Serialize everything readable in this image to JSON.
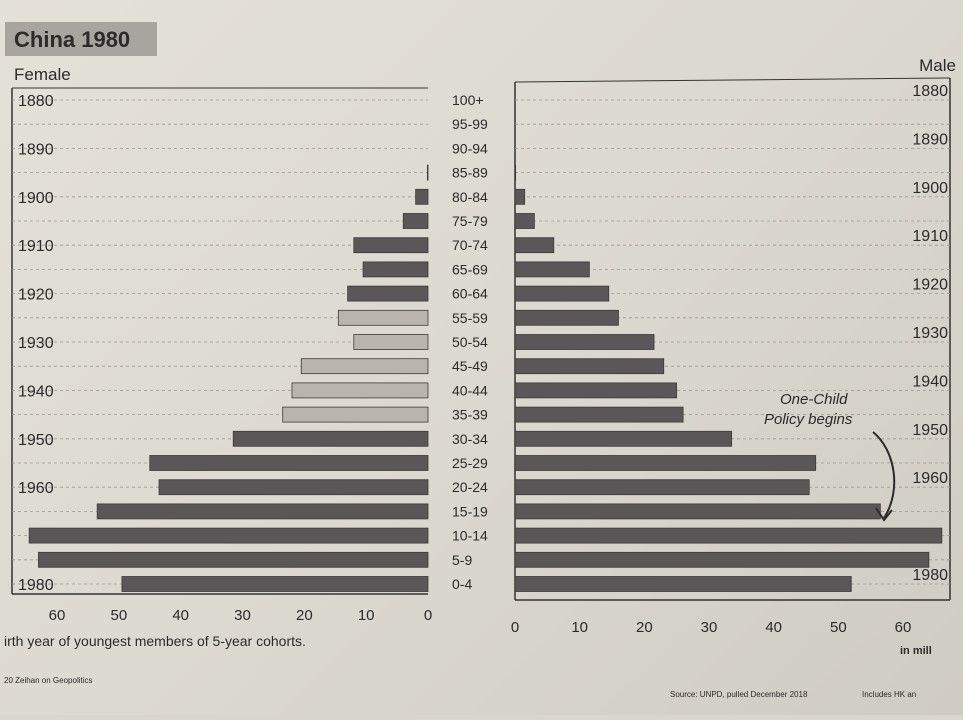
{
  "title": "China 1980",
  "female_label": "Female",
  "male_label": "Male",
  "footer": {
    "left_note": "irth year of youngest members of 5-year cohorts.",
    "credit": "20 Zeihan on Geopolitics",
    "source": "Source: UNPD, pulled December 2018",
    "includes": "Includes HK an",
    "units": "in mill"
  },
  "annotation": {
    "line1": "One-Child",
    "line2": "Policy begins"
  },
  "colors": {
    "bar": "#5b5658",
    "bar_light": "#b9b5ad",
    "title_bg": "#a8a59e",
    "grid": "#9c9890"
  },
  "chart_data": {
    "type": "bar",
    "orientation": "horizontal-population-pyramid",
    "categories": [
      "100+",
      "95-99",
      "90-94",
      "85-89",
      "80-84",
      "75-79",
      "70-74",
      "65-69",
      "60-64",
      "55-59",
      "50-54",
      "45-49",
      "40-44",
      "35-39",
      "30-34",
      "25-29",
      "20-24",
      "15-19",
      "10-14",
      "5-9",
      "0-4"
    ],
    "series": [
      {
        "name": "Female",
        "values": [
          0,
          0,
          0,
          0.1,
          2,
          4,
          12,
          10.5,
          13,
          14.5,
          12,
          20.5,
          22,
          23.5,
          31.5,
          45,
          43.5,
          53.5,
          64.5,
          63,
          49.5
        ]
      },
      {
        "name": "Male",
        "values": [
          0,
          0,
          0,
          0.1,
          1.5,
          3,
          6,
          11.5,
          14.5,
          16,
          21.5,
          23,
          25,
          26,
          33.5,
          46.5,
          45.5,
          56.5,
          66,
          64,
          52
        ]
      }
    ],
    "female_xticks": [
      "60",
      "50",
      "40",
      "30",
      "20",
      "10",
      "0"
    ],
    "male_xticks": [
      "0",
      "10",
      "20",
      "30",
      "40",
      "50",
      "60"
    ],
    "xlim": [
      0,
      66
    ],
    "female_birth_years": [
      "1880",
      "1890",
      "1900",
      "1910",
      "1920",
      "1930",
      "1940",
      "1950",
      "1960",
      "1980"
    ],
    "male_birth_years": [
      "1880",
      "1890",
      "1900",
      "1910",
      "1920",
      "1930",
      "1940",
      "1950",
      "1960",
      "1980"
    ],
    "grid": true
  }
}
